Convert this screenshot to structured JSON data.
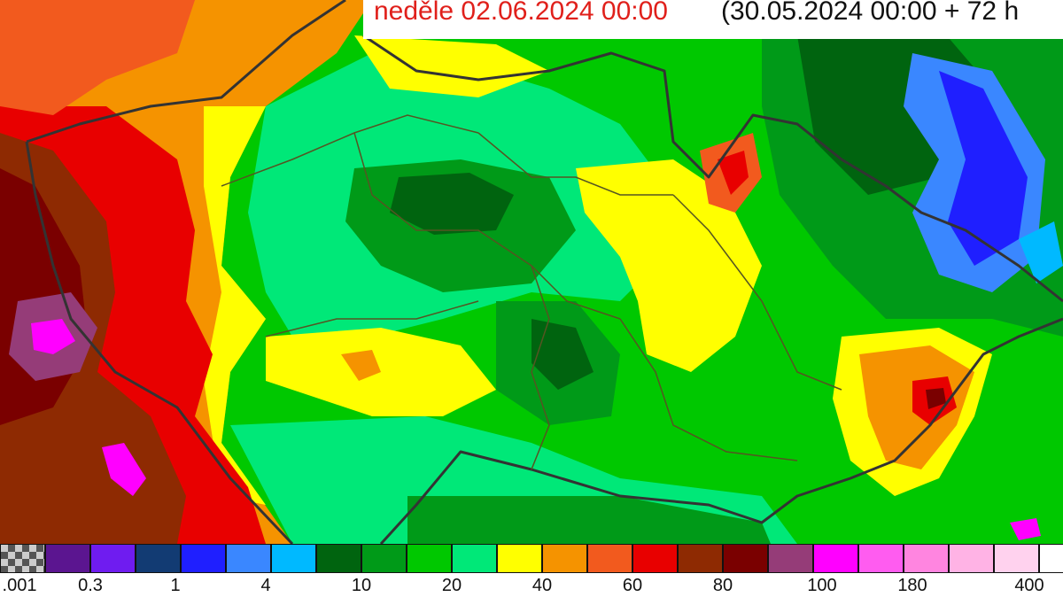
{
  "title": {
    "date_text": "neděle 02.06.2024 00:00",
    "run_text": "(30.05.2024 00:00 + 72 h"
  },
  "map": {
    "region": "Czech Republic precipitation forecast",
    "colors": {
      "dark_red": "#7a0000",
      "red": "#e80000",
      "orange_red": "#f25a1e",
      "orange": "#f59300",
      "yellow": "#ffff00",
      "light_green": "#00e878",
      "green": "#00c800",
      "mid_green": "#009a18",
      "dark_green": "#006a18",
      "blue": "#1f4fff",
      "light_blue": "#3a87ff",
      "cyan": "#00b9ff",
      "magenta": "#ff00ff",
      "purple": "#953c78",
      "border": "#333333"
    }
  },
  "legend": {
    "colors": [
      "#888888",
      "#5b1590",
      "#6f1cf0",
      "#123b73",
      "#1f1fff",
      "#3a87ff",
      "#00b9ff",
      "#00640f",
      "#009a18",
      "#00c800",
      "#00e878",
      "#ffff00",
      "#f59300",
      "#f25a1e",
      "#e80000",
      "#8e2a02",
      "#7a0000",
      "#953c78",
      "#ff00ff",
      "#ff5cf0",
      "#ff85e0",
      "#ffb3e5",
      "#ffd2ee",
      "#ffffff"
    ],
    "labels": [
      ".001",
      "0.3",
      "1",
      "4",
      "10",
      "20",
      "40",
      "60",
      "80",
      "100",
      "180",
      "400"
    ]
  }
}
